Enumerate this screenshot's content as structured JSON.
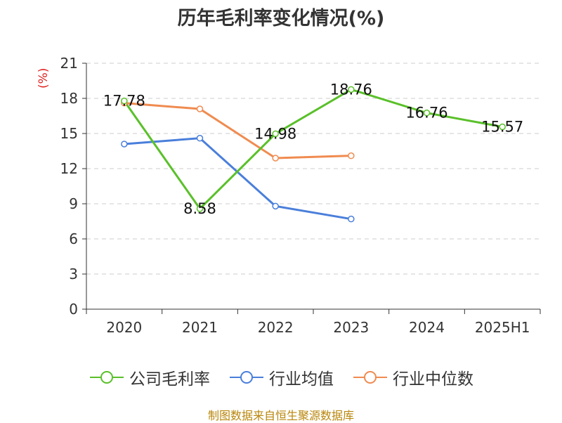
{
  "chart_data": {
    "type": "line",
    "title": "历年毛利率变化情况(%)",
    "ylabel": "(%)",
    "categories": [
      "2020",
      "2021",
      "2022",
      "2023",
      "2024",
      "2025H1"
    ],
    "ylim": [
      0,
      21
    ],
    "yticks": [
      0,
      3,
      6,
      9,
      12,
      15,
      18,
      21
    ],
    "grid": true,
    "legend_position": "bottom",
    "series": [
      {
        "name": "公司毛利率",
        "color": "#5ac02a",
        "values": [
          17.78,
          8.58,
          14.98,
          18.76,
          16.76,
          15.57
        ],
        "labels": [
          "17.78",
          "8.58",
          "14.98",
          "18.76",
          "16.76",
          "15.57"
        ]
      },
      {
        "name": "行业均值",
        "color": "#4a7fdb",
        "values": [
          14.1,
          14.6,
          8.8,
          7.7,
          null,
          null
        ],
        "labels": []
      },
      {
        "name": "行业中位数",
        "color": "#f08b50",
        "values": [
          17.6,
          17.1,
          12.9,
          13.1,
          null,
          null
        ],
        "labels": []
      }
    ]
  },
  "source": "制图数据来自恒生聚源数据库"
}
